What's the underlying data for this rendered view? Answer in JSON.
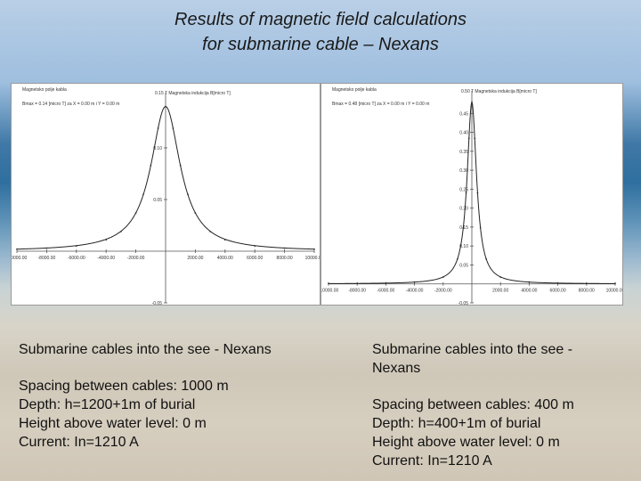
{
  "title_line1": "Results of magnetic field calculations",
  "title_line2": "for submarine cable – Nexans",
  "chart_data": [
    {
      "type": "line",
      "header_line1": "Magnetsko polje kabla",
      "header_line2": "Bmax = 0.14 [micro T] za X = 0.00 m i Y = 0.00 m",
      "ylabel": "0.15 T  Magnetska indukcija B[micro T]",
      "xlim": [
        -10000,
        10000
      ],
      "ylim": [
        -0.05,
        0.15
      ],
      "x_ticks": [
        "-10000.00",
        "-8000.00",
        "-6000.00",
        "-4000.00",
        "-2000.00",
        "2000.00",
        "4000.00",
        "6000.00",
        "8000.00",
        "10000.00"
      ],
      "x_tick_values": [
        -10000,
        -8000,
        -6000,
        -4000,
        -2000,
        2000,
        4000,
        6000,
        8000,
        10000
      ],
      "y_ticks": [
        "0.10",
        "0.05",
        "-0.05"
      ],
      "y_tick_values": [
        0.1,
        0.05,
        -0.05
      ],
      "peak": 0.14,
      "half_width": 1200,
      "x": [
        -10000,
        -8000,
        -6000,
        -4000,
        -3000,
        -2000,
        -1500,
        -1000,
        -500,
        0,
        500,
        1000,
        1500,
        2000,
        3000,
        4000,
        6000,
        8000,
        10000
      ],
      "y": [
        0.002,
        0.003,
        0.005,
        0.011,
        0.019,
        0.037,
        0.055,
        0.083,
        0.119,
        0.14,
        0.119,
        0.083,
        0.055,
        0.037,
        0.019,
        0.011,
        0.005,
        0.003,
        0.002
      ]
    },
    {
      "type": "line",
      "header_line1": "Magnetsko polje kabla",
      "header_line2": "Bmax = 0.48 [micro T] za X = 0.00 m i Y = 0.00 m",
      "ylabel": "0.50 T  Magnetska indukcija B[micro T]",
      "xlim": [
        -10000,
        10000
      ],
      "ylim": [
        -0.05,
        0.5
      ],
      "x_ticks": [
        "-10000.00",
        "-8000.00",
        "-6000.00",
        "-4000.00",
        "-2000.00",
        "2000.00",
        "4000.00",
        "6000.00",
        "8000.00",
        "10000.00"
      ],
      "x_tick_values": [
        -10000,
        -8000,
        -6000,
        -4000,
        -2000,
        2000,
        4000,
        6000,
        8000,
        10000
      ],
      "y_ticks": [
        "0.45",
        "0.40",
        "0.35",
        "0.30",
        "0.25",
        "0.20",
        "0.15",
        "0.10",
        "0.05",
        "-0.05"
      ],
      "y_tick_values": [
        0.45,
        0.4,
        0.35,
        0.3,
        0.25,
        0.2,
        0.15,
        0.1,
        0.05,
        -0.05
      ],
      "peak": 0.48,
      "half_width": 400,
      "x": [
        -10000,
        -8000,
        -6000,
        -4000,
        -2000,
        -1000,
        -600,
        -400,
        -200,
        0,
        200,
        400,
        600,
        1000,
        2000,
        4000,
        6000,
        8000,
        10000
      ],
      "y": [
        0.001,
        0.001,
        0.002,
        0.005,
        0.018,
        0.066,
        0.148,
        0.24,
        0.384,
        0.48,
        0.384,
        0.24,
        0.148,
        0.066,
        0.018,
        0.005,
        0.002,
        0.001,
        0.001
      ]
    }
  ],
  "left": {
    "heading": "Submarine cables into the see - Nexans",
    "spacing": "Spacing between cables: 1000 m",
    "depth": "Depth: h=1200+1m of burial",
    "height": "Height above water level: 0 m",
    "current": "Current: In=1210 A"
  },
  "right": {
    "heading": "Submarine cables into the see - Nexans",
    "spacing": "Spacing between cables: 400 m",
    "depth": "Depth: h=400+1m of burial",
    "height": "Height above water level: 0 m",
    "current": "Current: In=1210 A"
  }
}
